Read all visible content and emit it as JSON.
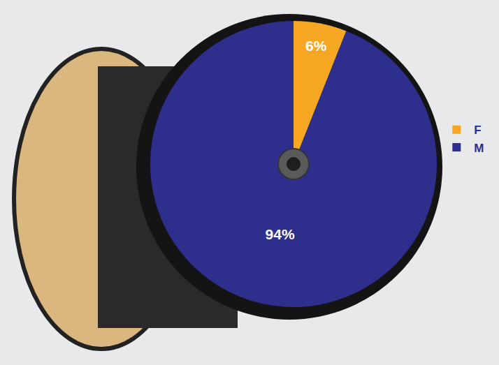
{
  "chart_data": {
    "type": "pie",
    "categories": [
      "F",
      "M"
    ],
    "values": [
      6,
      94
    ],
    "colors": [
      "#f5a623",
      "#2e2f8c"
    ],
    "value_labels": [
      "6%",
      "94%"
    ],
    "data_labels": true,
    "legend": "right"
  }
}
